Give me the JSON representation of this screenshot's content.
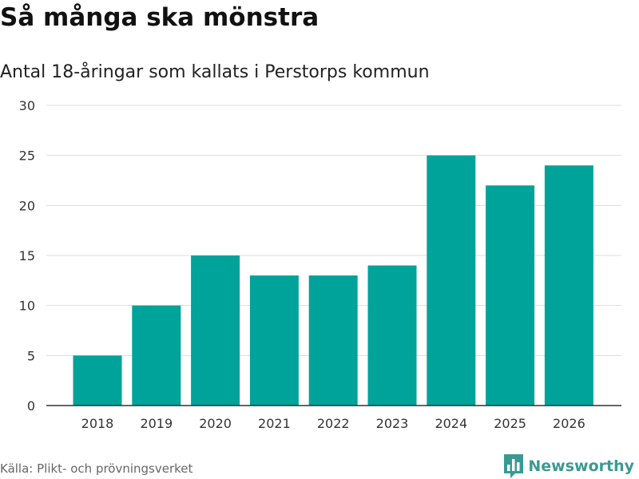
{
  "title": "Så många ska mönstra",
  "subtitle": "Antal 18-åringar som kallats i Perstorps kommun",
  "source": "Källa: Plikt- och prövningsverket",
  "brand": {
    "name": "Newsworthy",
    "logo_icon": "newsworthy-bar-chart-icon",
    "color": "#3a9a92"
  },
  "colors": {
    "bar": "#00a39a",
    "grid": "#dddddd",
    "axis": "#333333",
    "tick_text": "#333333"
  },
  "chart_data": {
    "type": "bar",
    "title": "Så många ska mönstra",
    "subtitle": "Antal 18-åringar som kallats i Perstorps kommun",
    "categories": [
      "2018",
      "2019",
      "2020",
      "2021",
      "2022",
      "2023",
      "2024",
      "2025",
      "2026"
    ],
    "values": [
      5,
      10,
      15,
      13,
      13,
      14,
      25,
      22,
      24
    ],
    "xlabel": "",
    "ylabel": "",
    "ylim": [
      0,
      30
    ],
    "yticks": [
      0,
      5,
      10,
      15,
      20,
      25,
      30
    ],
    "grid": true,
    "legend": "none"
  }
}
